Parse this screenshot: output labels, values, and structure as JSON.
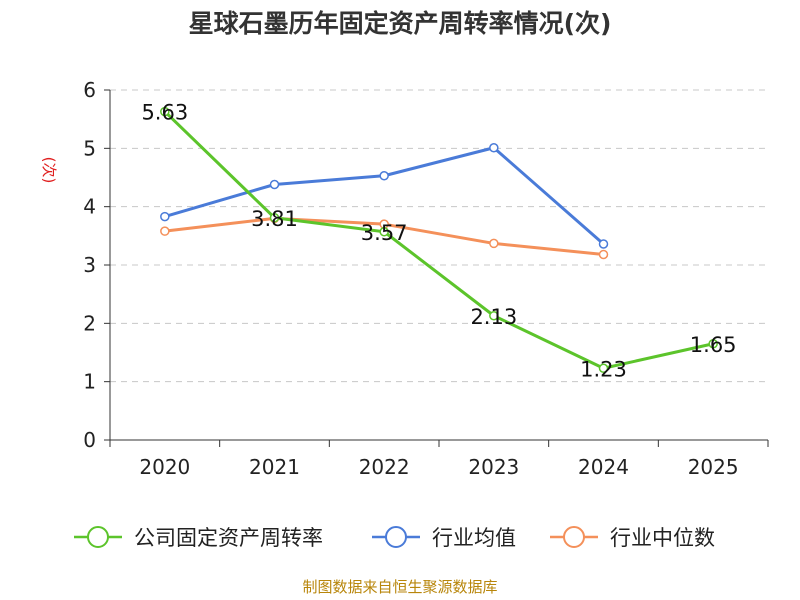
{
  "chart_data": {
    "type": "line",
    "title": "星球石墨历年固定资产周转率情况(次)",
    "ylabel": "(次)",
    "xlabel": "",
    "ylim": [
      0,
      6
    ],
    "yticks": [
      0,
      1,
      2,
      3,
      4,
      5,
      6
    ],
    "categories": [
      "2020",
      "2021",
      "2022",
      "2023",
      "2024",
      "2025"
    ],
    "series": [
      {
        "name": "公司固定资产周转率",
        "color": "#5cc42b",
        "values": [
          5.63,
          3.81,
          3.57,
          2.13,
          1.23,
          1.65
        ],
        "labels": [
          "5.63",
          "3.81",
          "3.57",
          "2.13",
          "1.23",
          "1.65"
        ]
      },
      {
        "name": "行业均值",
        "color": "#4a7bd8",
        "values": [
          3.83,
          4.38,
          4.53,
          5.01,
          3.36,
          null
        ]
      },
      {
        "name": "行业中位数",
        "color": "#f4905a",
        "values": [
          3.58,
          3.8,
          3.7,
          3.37,
          3.18,
          null
        ]
      }
    ],
    "grid": true,
    "legend_position": "bottom"
  },
  "source": "制图数据来自恒生聚源数据库"
}
